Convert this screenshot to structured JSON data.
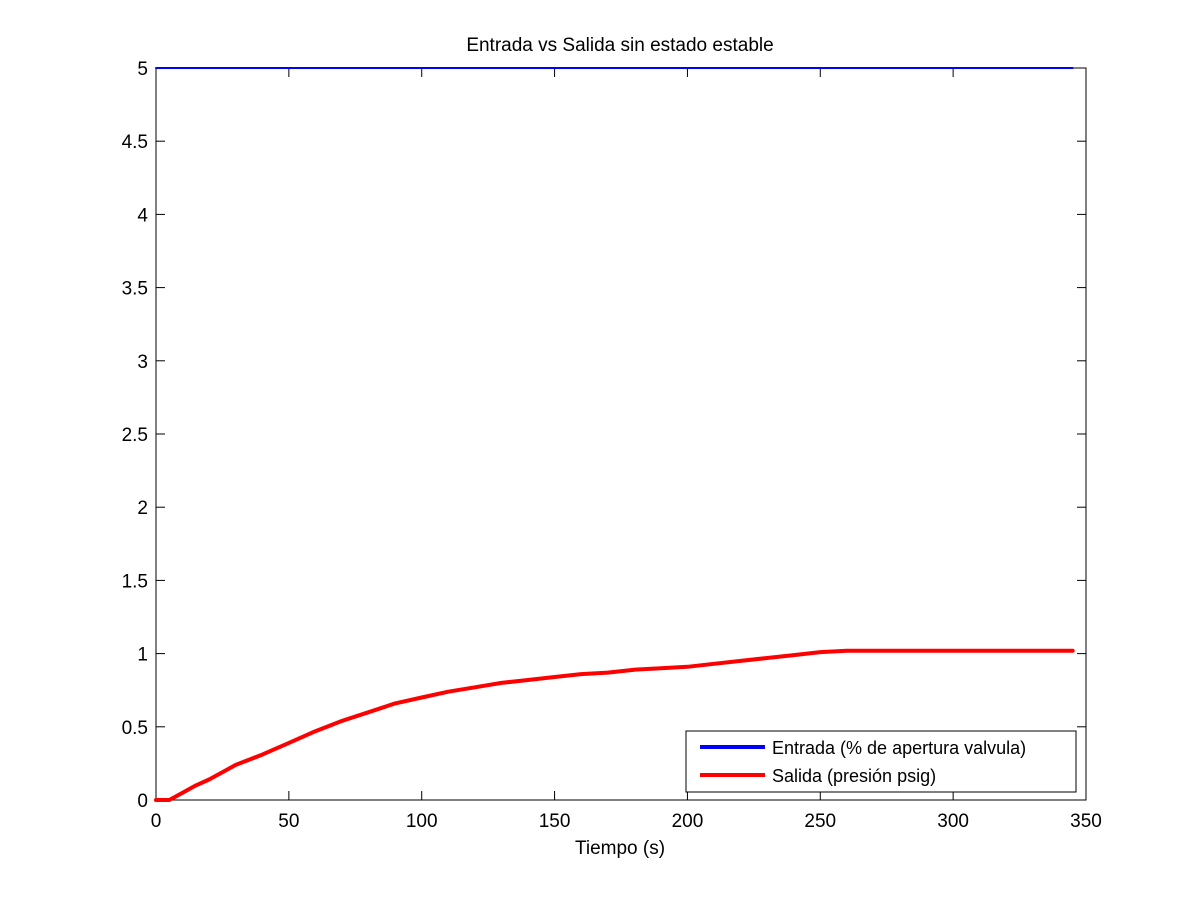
{
  "chart_data": {
    "type": "line",
    "title": "Entrada vs Salida sin estado estable",
    "xlabel": "Tiempo (s)",
    "ylabel": "",
    "xlim": [
      0,
      350
    ],
    "ylim": [
      0,
      5
    ],
    "xticks": [
      0,
      50,
      100,
      150,
      200,
      250,
      300,
      350
    ],
    "yticks": [
      0,
      0.5,
      1,
      1.5,
      2,
      2.5,
      3,
      3.5,
      4,
      4.5,
      5
    ],
    "xtick_labels": [
      "0",
      "50",
      "100",
      "150",
      "200",
      "250",
      "300",
      "350"
    ],
    "ytick_labels": [
      "0",
      "0.5",
      "1",
      "1.5",
      "2",
      "2.5",
      "3",
      "3.5",
      "4",
      "4.5",
      "5"
    ],
    "grid": false,
    "legend_position": "bottom-right",
    "series": [
      {
        "name": "Entrada (% de apertura valvula)",
        "color": "#0000ff",
        "points": [
          [
            0,
            5
          ],
          [
            345,
            5
          ]
        ]
      },
      {
        "name": "Salida (presión psig)",
        "color": "#ff0000",
        "points": [
          [
            0,
            0
          ],
          [
            5,
            0
          ],
          [
            10,
            0.05
          ],
          [
            15,
            0.1
          ],
          [
            20,
            0.14
          ],
          [
            25,
            0.19
          ],
          [
            30,
            0.24
          ],
          [
            40,
            0.31
          ],
          [
            50,
            0.39
          ],
          [
            60,
            0.47
          ],
          [
            70,
            0.54
          ],
          [
            80,
            0.6
          ],
          [
            90,
            0.66
          ],
          [
            100,
            0.7
          ],
          [
            110,
            0.74
          ],
          [
            120,
            0.77
          ],
          [
            130,
            0.8
          ],
          [
            140,
            0.82
          ],
          [
            150,
            0.84
          ],
          [
            160,
            0.86
          ],
          [
            170,
            0.87
          ],
          [
            180,
            0.89
          ],
          [
            190,
            0.9
          ],
          [
            200,
            0.91
          ],
          [
            210,
            0.93
          ],
          [
            220,
            0.95
          ],
          [
            230,
            0.97
          ],
          [
            240,
            0.99
          ],
          [
            250,
            1.01
          ],
          [
            260,
            1.02
          ],
          [
            270,
            1.02
          ],
          [
            280,
            1.02
          ],
          [
            300,
            1.02
          ],
          [
            320,
            1.02
          ],
          [
            345,
            1.02
          ]
        ]
      }
    ]
  }
}
